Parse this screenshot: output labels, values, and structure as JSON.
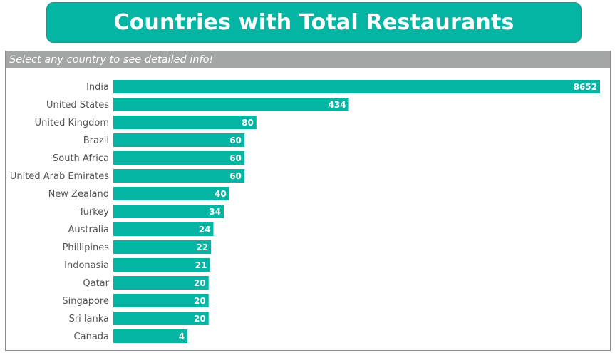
{
  "header": {
    "title": "Countries with Total Restaurants",
    "instruction": "Select any country to see detailed info!"
  },
  "colors": {
    "bar": "#05b5a4",
    "banner": "#05b5a4",
    "panel_header": "#a4a6a6"
  },
  "chart_data": {
    "type": "bar",
    "orientation": "horizontal",
    "title": "Countries with Total Restaurants",
    "xlabel": "",
    "ylabel": "",
    "categories": [
      "India",
      "United States",
      "United Kingdom",
      "Brazil",
      "South Africa",
      "United Arab Emirates",
      "New Zealand",
      "Turkey",
      "Australia",
      "Phillipines",
      "Indonasia",
      "Qatar",
      "Singapore",
      "Sri lanka",
      "Canada"
    ],
    "values": [
      8652,
      434,
      80,
      60,
      60,
      60,
      40,
      34,
      24,
      22,
      21,
      20,
      20,
      20,
      4
    ],
    "data_labels": true,
    "grid": false
  }
}
